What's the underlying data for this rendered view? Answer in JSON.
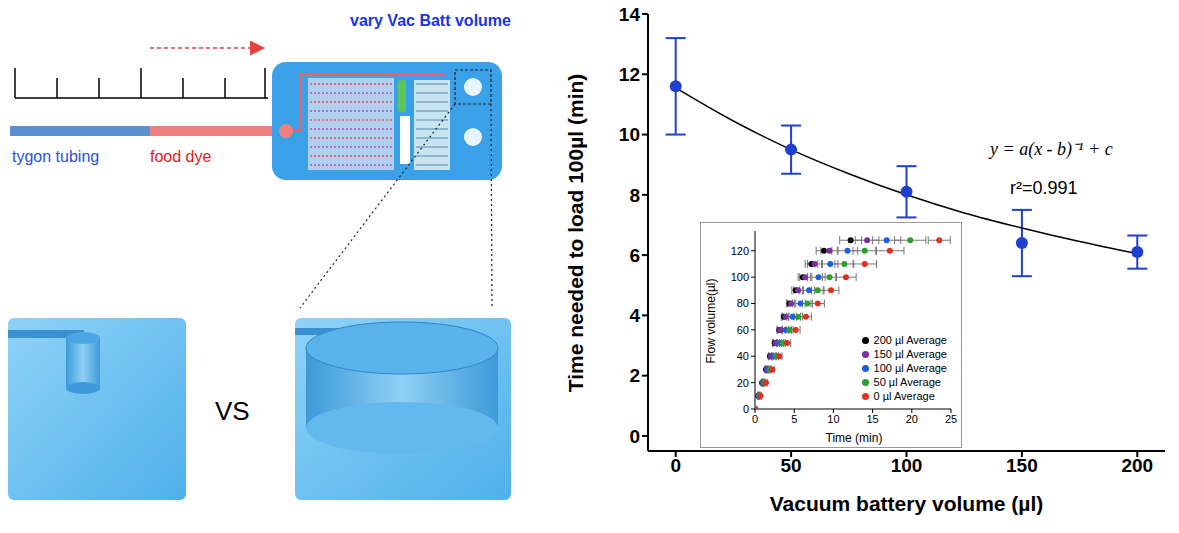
{
  "diagram": {
    "title": "vary Vac Batt volume",
    "tubing_label": "tygon tubing",
    "dye_label": "food dye",
    "comparison": "VS"
  },
  "chart_data": [
    {
      "type": "scatter",
      "x_label": "Vacuum battery volume (µl)",
      "y_label": "Time needed to load 100µl (min)",
      "series": [
        {
          "type": "scatter",
          "color": "#1f3fd0",
          "marker": "circle",
          "x": [
            0,
            50,
            100,
            150,
            200
          ],
          "values": [
            11.6,
            9.5,
            8.1,
            6.4,
            6.1
          ],
          "errors": [
            1.6,
            0.8,
            0.85,
            1.1,
            0.55
          ]
        },
        {
          "type": "line",
          "color": "#000000",
          "line_style": "solid",
          "x": [
            0,
            25,
            50,
            75,
            100,
            125,
            150,
            175,
            200
          ],
          "values": [
            11.55,
            10.45,
            9.5,
            8.7,
            8.0,
            7.4,
            6.9,
            6.45,
            6.05
          ]
        }
      ],
      "annotations": [
        "y = a(x - b)⁻¹ + c",
        "r²=0.991"
      ],
      "xlim": [
        -12,
        212
      ],
      "xticks": [
        0,
        50,
        100,
        150,
        200
      ],
      "ylim": [
        -0.5,
        14
      ],
      "yticks": [
        0,
        2,
        4,
        6,
        8,
        10,
        12,
        14
      ],
      "grid": false
    },
    {
      "type": "scatter",
      "x_label": "Time (min)",
      "y_label": "Flow volume(µl)",
      "series": [
        {
          "name": "200 µl Average",
          "color": "#000000",
          "marker": "circle",
          "x": [
            0,
            0.4,
            0.9,
            1.4,
            1.9,
            2.5,
            3.1,
            3.7,
            4.4,
            5.2,
            6.1,
            7.2,
            8.8,
            12.2
          ],
          "values": [
            0,
            10,
            20,
            30,
            40,
            50,
            60,
            70,
            80,
            90,
            100,
            110,
            120,
            128
          ],
          "x_errors": [
            0,
            0.05,
            0.1,
            0.15,
            0.2,
            0.25,
            0.3,
            0.35,
            0.4,
            0.5,
            0.6,
            0.8,
            1.0,
            1.4
          ]
        },
        {
          "name": "150 µl Average",
          "color": "#7b2fa0",
          "marker": "circle",
          "x": [
            0,
            0.45,
            0.95,
            1.5,
            2.0,
            2.6,
            3.2,
            3.9,
            4.6,
            5.5,
            6.4,
            7.6,
            9.5,
            14.3
          ],
          "values": [
            0,
            10,
            20,
            30,
            40,
            50,
            60,
            70,
            80,
            90,
            100,
            110,
            120,
            128
          ],
          "x_errors": [
            0,
            0.05,
            0.1,
            0.15,
            0.2,
            0.25,
            0.3,
            0.4,
            0.45,
            0.55,
            0.7,
            0.9,
            1.1,
            1.5
          ]
        },
        {
          "name": "100 µl Average",
          "color": "#1e5fe0",
          "marker": "circle",
          "x": [
            0,
            0.5,
            1.1,
            1.7,
            2.4,
            3.1,
            3.9,
            4.8,
            5.8,
            6.9,
            8.1,
            9.6,
            11.8,
            16.8
          ],
          "values": [
            0,
            10,
            20,
            30,
            40,
            50,
            60,
            70,
            80,
            90,
            100,
            110,
            120,
            128
          ],
          "x_errors": [
            0,
            0.05,
            0.1,
            0.2,
            0.25,
            0.3,
            0.4,
            0.5,
            0.6,
            0.7,
            0.85,
            1.0,
            1.3,
            1.8
          ]
        },
        {
          "name": "50 µl Average",
          "color": "#2ca02c",
          "marker": "circle",
          "x": [
            0,
            0.6,
            1.2,
            1.9,
            2.7,
            3.5,
            4.4,
            5.5,
            6.7,
            8.0,
            9.5,
            11.4,
            14.0,
            19.8
          ],
          "values": [
            0,
            10,
            20,
            30,
            40,
            50,
            60,
            70,
            80,
            90,
            100,
            110,
            120,
            128
          ],
          "x_errors": [
            0,
            0.05,
            0.1,
            0.2,
            0.3,
            0.35,
            0.45,
            0.55,
            0.65,
            0.8,
            0.9,
            1.2,
            1.5,
            2.0
          ]
        },
        {
          "name": "0 µl Average",
          "color": "#e03020",
          "marker": "circle",
          "x": [
            0,
            0.7,
            1.4,
            2.2,
            3.1,
            4.1,
            5.2,
            6.5,
            8.0,
            9.7,
            11.6,
            14.0,
            17.2,
            23.5
          ],
          "values": [
            0,
            10,
            20,
            30,
            40,
            50,
            60,
            70,
            80,
            90,
            100,
            110,
            120,
            128
          ],
          "x_errors": [
            0,
            0.1,
            0.15,
            0.25,
            0.35,
            0.45,
            0.55,
            0.7,
            0.85,
            1.0,
            1.3,
            1.5,
            1.8,
            1.4
          ]
        }
      ],
      "xlim": [
        0,
        25
      ],
      "xticks": [
        0,
        5,
        10,
        15,
        20,
        25
      ],
      "ylim": [
        0,
        135
      ],
      "yticks": [
        0,
        20,
        40,
        60,
        80,
        100,
        120
      ],
      "legend": "right",
      "grid": false
    }
  ]
}
